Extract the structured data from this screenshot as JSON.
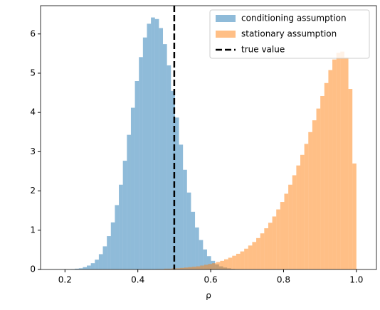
{
  "chart_data": {
    "type": "histogram",
    "xlabel": "ρ",
    "series": [
      {
        "name": "conditioning assumption",
        "color": "#1f77b4",
        "bins": [
          0.15,
          0.161,
          0.172,
          0.183,
          0.194,
          0.205,
          0.216,
          0.227,
          0.238,
          0.249,
          0.26,
          0.271,
          0.282,
          0.293,
          0.304,
          0.315,
          0.326,
          0.337,
          0.348,
          0.359,
          0.37,
          0.381,
          0.392,
          0.403,
          0.414,
          0.425,
          0.436,
          0.447,
          0.458,
          0.469,
          0.48,
          0.491,
          0.502,
          0.513,
          0.524,
          0.535,
          0.546,
          0.557,
          0.568,
          0.579,
          0.59,
          0.601,
          0.612,
          0.623,
          0.634,
          0.645,
          0.656,
          0.667,
          0.678,
          0.689,
          0.7
        ],
        "values": [
          0.0001,
          0.0003,
          0.0006,
          0.001,
          0.003,
          0.005,
          0.01,
          0.02,
          0.03,
          0.06,
          0.1,
          0.16,
          0.25,
          0.39,
          0.59,
          0.85,
          1.2,
          1.64,
          2.16,
          2.77,
          3.43,
          4.12,
          4.8,
          5.41,
          5.91,
          6.26,
          6.42,
          6.38,
          6.15,
          5.74,
          5.2,
          4.55,
          3.87,
          3.18,
          2.54,
          1.96,
          1.47,
          1.07,
          0.75,
          0.51,
          0.34,
          0.22,
          0.13,
          0.08,
          0.05,
          0.03,
          0.015,
          0.008,
          0.004,
          0.002
        ]
      },
      {
        "name": "stationary assumption",
        "color": "#ff7f0e",
        "bins": [
          0.45,
          0.461,
          0.472,
          0.483,
          0.494,
          0.505,
          0.516,
          0.527,
          0.538,
          0.549,
          0.56,
          0.571,
          0.582,
          0.593,
          0.604,
          0.615,
          0.626,
          0.637,
          0.648,
          0.659,
          0.67,
          0.681,
          0.692,
          0.703,
          0.714,
          0.725,
          0.736,
          0.747,
          0.758,
          0.769,
          0.78,
          0.791,
          0.802,
          0.813,
          0.824,
          0.835,
          0.846,
          0.857,
          0.868,
          0.879,
          0.89,
          0.901,
          0.912,
          0.923,
          0.934,
          0.945,
          0.956,
          0.967,
          0.978,
          0.989,
          1.0
        ],
        "values": [
          0.01,
          0.01,
          0.02,
          0.02,
          0.03,
          0.03,
          0.04,
          0.05,
          0.06,
          0.07,
          0.08,
          0.1,
          0.12,
          0.14,
          0.16,
          0.19,
          0.22,
          0.26,
          0.3,
          0.35,
          0.4,
          0.46,
          0.53,
          0.61,
          0.7,
          0.8,
          0.92,
          1.05,
          1.19,
          1.35,
          1.53,
          1.72,
          1.93,
          2.16,
          2.4,
          2.65,
          2.92,
          3.2,
          3.5,
          3.8,
          4.1,
          4.42,
          4.75,
          5.08,
          5.35,
          5.52,
          5.55,
          5.4,
          4.6,
          2.7
        ]
      }
    ],
    "alpha": 0.5,
    "vline": {
      "name": "true value",
      "value": 0.5,
      "color": "#000000"
    },
    "xlim": [
      0.133,
      1.055
    ],
    "xticks": [
      0.2,
      0.4,
      0.6,
      0.8,
      {
        "value": 1.0,
        "label": "1.0"
      }
    ],
    "ylim": [
      0,
      6.72
    ],
    "yticks": [
      0,
      1,
      2,
      3,
      4,
      5,
      6
    ],
    "legend": "upper right"
  }
}
